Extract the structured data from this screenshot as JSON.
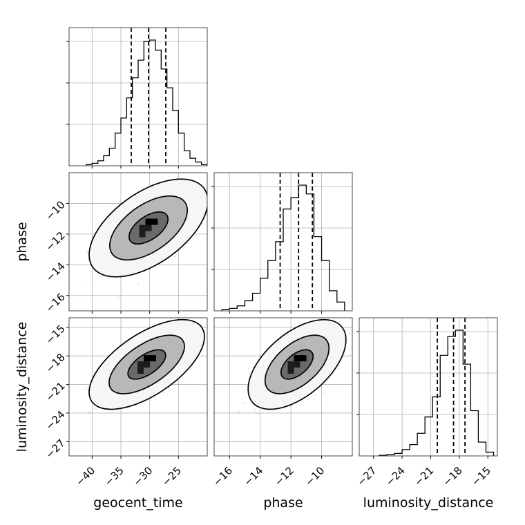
{
  "chart_data": {
    "type": "corner",
    "grid": true,
    "parameters": [
      {
        "name": "geocent_time",
        "label": "geocent_time",
        "lim": [
          -44,
          -20
        ],
        "ticks": [
          -40,
          -35,
          -30,
          -25
        ],
        "tick_labels": [
          "−40",
          "−35",
          "−30",
          "−25"
        ],
        "quantiles": [
          -33.2,
          -30.2,
          -27.2
        ],
        "histogram": {
          "bin_edges": [
            -41,
            -40,
            -39,
            -38,
            -37,
            -36,
            -35,
            -34,
            -33,
            -32,
            -31,
            -30,
            -29,
            -28,
            -27,
            -26,
            -25,
            -24,
            -23,
            -22,
            -21,
            -20
          ],
          "counts": [
            0.01,
            0.02,
            0.04,
            0.08,
            0.14,
            0.26,
            0.38,
            0.54,
            0.7,
            0.84,
            0.99,
            1.0,
            0.92,
            0.77,
            0.62,
            0.44,
            0.26,
            0.12,
            0.06,
            0.03,
            0.01
          ]
        }
      },
      {
        "name": "phase",
        "label": "phase",
        "lim": [
          -17,
          -8
        ],
        "ticks": [
          -16,
          -14,
          -12,
          -10
        ],
        "tick_labels": [
          "−16",
          "−14",
          "−12",
          "−10"
        ],
        "quantiles": [
          -12.7,
          -11.5,
          -10.6
        ],
        "histogram": {
          "bin_edges": [
            -16.5,
            -16.0,
            -15.5,
            -15.0,
            -14.5,
            -14.0,
            -13.5,
            -13.0,
            -12.5,
            -12.0,
            -11.5,
            -11.0,
            -10.5,
            -10.0,
            -9.5,
            -9.0,
            -8.5
          ],
          "counts": [
            0.01,
            0.02,
            0.04,
            0.08,
            0.14,
            0.26,
            0.4,
            0.55,
            0.81,
            0.9,
            1.0,
            0.93,
            0.59,
            0.4,
            0.16,
            0.07
          ]
        }
      },
      {
        "name": "luminosity_distance",
        "label": "luminosity_distance",
        "lim": [
          -28.5,
          -14
        ],
        "ticks": [
          -27,
          -24,
          -21,
          -18,
          -15
        ],
        "tick_labels": [
          "−27",
          "−24",
          "−21",
          "−18",
          "−15"
        ],
        "quantiles": [
          -20.3,
          -18.6,
          -17.4
        ],
        "histogram": {
          "bin_edges": [
            -26.4,
            -25.6,
            -24.8,
            -24.0,
            -23.2,
            -22.4,
            -21.6,
            -20.8,
            -20.0,
            -19.2,
            -18.4,
            -17.6,
            -16.8,
            -16.0,
            -15.2,
            -14.4
          ],
          "counts": [
            0.005,
            0.01,
            0.02,
            0.05,
            0.09,
            0.18,
            0.31,
            0.47,
            0.8,
            0.95,
            1.0,
            0.73,
            0.36,
            0.11,
            0.03
          ]
        }
      }
    ],
    "pairs": [
      {
        "x": "geocent_time",
        "y": "phase",
        "mean": [
          -30.2,
          -11.6
        ],
        "sd": [
          3.4,
          1.05
        ],
        "rho": 0.55,
        "levels": [
          0.39,
          0.86,
          0.99
        ]
      },
      {
        "x": "geocent_time",
        "y": "luminosity_distance",
        "mean": [
          -30.5,
          -18.9
        ],
        "sd": [
          3.3,
          1.55
        ],
        "rho": 0.62,
        "levels": [
          0.39,
          0.86,
          0.99
        ]
      },
      {
        "x": "phase",
        "y": "luminosity_distance",
        "mean": [
          -11.6,
          -18.9
        ],
        "sd": [
          1.05,
          1.55
        ],
        "rho": 0.55,
        "levels": [
          0.39,
          0.86,
          0.99
        ]
      }
    ]
  }
}
